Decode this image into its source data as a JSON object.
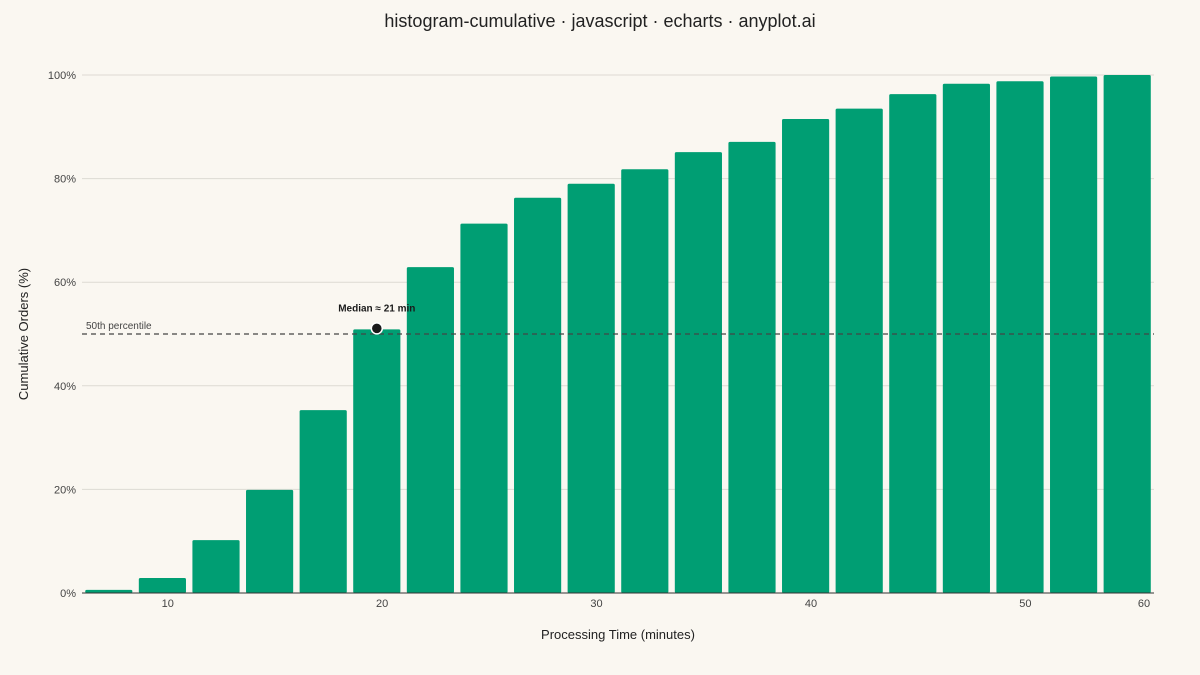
{
  "title": "histogram-cumulative · javascript · echarts · anyplot.ai",
  "chart_data": {
    "type": "bar",
    "title": "histogram-cumulative · javascript · echarts · anyplot.ai",
    "xlabel": "Processing Time (minutes)",
    "ylabel": "Cumulative Orders (%)",
    "x_ticks": [
      10,
      20,
      30,
      40,
      50,
      60
    ],
    "y_ticks": [
      "0%",
      "20%",
      "40%",
      "60%",
      "80%",
      "100%"
    ],
    "ylim": [
      0,
      100
    ],
    "grid": true,
    "bins": [
      {
        "x_start": 6.0,
        "x_end": 8.5,
        "value": 0.6
      },
      {
        "x_start": 8.5,
        "x_end": 11.0,
        "value": 2.9
      },
      {
        "x_start": 11.0,
        "x_end": 13.5,
        "value": 10.2
      },
      {
        "x_start": 13.5,
        "x_end": 16.0,
        "value": 19.9
      },
      {
        "x_start": 16.0,
        "x_end": 18.5,
        "value": 35.3
      },
      {
        "x_start": 18.5,
        "x_end": 21.0,
        "value": 50.9
      },
      {
        "x_start": 21.0,
        "x_end": 23.5,
        "value": 62.9
      },
      {
        "x_start": 23.5,
        "x_end": 26.0,
        "value": 71.3
      },
      {
        "x_start": 26.0,
        "x_end": 28.5,
        "value": 76.3
      },
      {
        "x_start": 28.5,
        "x_end": 31.0,
        "value": 79.0
      },
      {
        "x_start": 31.0,
        "x_end": 33.5,
        "value": 81.8
      },
      {
        "x_start": 33.5,
        "x_end": 36.0,
        "value": 85.1
      },
      {
        "x_start": 36.0,
        "x_end": 38.5,
        "value": 87.1
      },
      {
        "x_start": 38.5,
        "x_end": 41.0,
        "value": 91.5
      },
      {
        "x_start": 41.0,
        "x_end": 43.5,
        "value": 93.5
      },
      {
        "x_start": 43.5,
        "x_end": 46.0,
        "value": 96.3
      },
      {
        "x_start": 46.0,
        "x_end": 48.5,
        "value": 98.3
      },
      {
        "x_start": 48.5,
        "x_end": 51.0,
        "value": 98.8
      },
      {
        "x_start": 51.0,
        "x_end": 53.5,
        "value": 99.7
      },
      {
        "x_start": 53.5,
        "x_end": 56.0,
        "value": 100.0
      }
    ],
    "reference_line": {
      "value": 50,
      "label": "50th percentile",
      "style": "dashed"
    },
    "median_marker": {
      "bin_index": 5,
      "value": 50.9,
      "label": "Median ≈ 21 min"
    },
    "colors": {
      "bar": "#009e73",
      "background": "#faf7f1",
      "grid": "#dddad3",
      "axis": "#333333",
      "reference_line": "#444444",
      "marker": "#1a1a1a"
    }
  }
}
